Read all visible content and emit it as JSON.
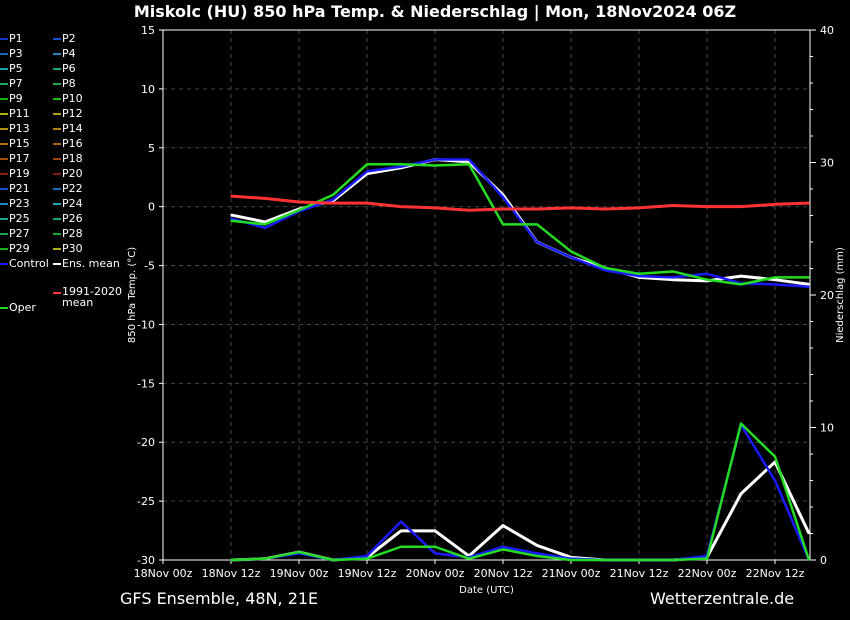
{
  "title": "Miskolc  (HU)  850 hPa Temp. & Niederschlag | Mon, 18Nov2024 06Z",
  "footer_left": "GFS Ensemble, 48N, 21E",
  "footer_right": "Wetterzentrale.de",
  "legend": [
    {
      "label": "P1",
      "color": "#1a33cc"
    },
    {
      "label": "P2",
      "color": "#1a4fcc"
    },
    {
      "label": "P3",
      "color": "#1a66bb"
    },
    {
      "label": "P4",
      "color": "#1a88bb"
    },
    {
      "label": "P5",
      "color": "#1aa6a6"
    },
    {
      "label": "P6",
      "color": "#1aa680"
    },
    {
      "label": "P7",
      "color": "#1aa666"
    },
    {
      "label": "P8",
      "color": "#1aa644"
    },
    {
      "label": "P9",
      "color": "#1ab01a"
    },
    {
      "label": "P10",
      "color": "#22bb11"
    },
    {
      "label": "P11",
      "color": "#b0b011"
    },
    {
      "label": "P12",
      "color": "#b0a011"
    },
    {
      "label": "P13",
      "color": "#b09011"
    },
    {
      "label": "P14",
      "color": "#b08011"
    },
    {
      "label": "P15",
      "color": "#b07011"
    },
    {
      "label": "P16",
      "color": "#b06011"
    },
    {
      "label": "P17",
      "color": "#a05011"
    },
    {
      "label": "P18",
      "color": "#a04011"
    },
    {
      "label": "P19",
      "color": "#8a2011"
    },
    {
      "label": "P20",
      "color": "#8a1a11"
    },
    {
      "label": "P21",
      "color": "#1a4fcc"
    },
    {
      "label": "P22",
      "color": "#1a6ebb"
    },
    {
      "label": "P23",
      "color": "#1a88bb"
    },
    {
      "label": "P24",
      "color": "#1aa6b0"
    },
    {
      "label": "P25",
      "color": "#1aa690"
    },
    {
      "label": "P26",
      "color": "#1aa670"
    },
    {
      "label": "P27",
      "color": "#1aa650"
    },
    {
      "label": "P28",
      "color": "#1aa630"
    },
    {
      "label": "P29",
      "color": "#1ab01a"
    },
    {
      "label": "P30",
      "color": "#b0b011"
    },
    {
      "label": "Control",
      "color": "#1a1aff"
    },
    {
      "label": "Ens. mean",
      "color": "#ffffff"
    },
    {
      "label": "1991-2020 mean",
      "color": "#ff3333"
    },
    {
      "label": "Oper",
      "color": "#22dd22"
    }
  ],
  "chart_data": {
    "type": "line",
    "x": [
      "18Nov 12z",
      "18Nov 18z",
      "19Nov 00z",
      "19Nov 06z",
      "19Nov 12z",
      "19Nov 18z",
      "20Nov 00z",
      "20Nov 06z",
      "20Nov 12z",
      "20Nov 18z",
      "21Nov 00z",
      "21Nov 06z",
      "21Nov 12z",
      "21Nov 18z",
      "22Nov 00z",
      "22Nov 06z",
      "22Nov 12z",
      "22Nov 18z"
    ],
    "xticks": [
      "18Nov 00z",
      "18Nov 12z",
      "19Nov 00z",
      "19Nov 12z",
      "20Nov 00z",
      "20Nov 12z",
      "21Nov 00z",
      "21Nov 12z",
      "22Nov 00z",
      "22Nov 12z"
    ],
    "xlabel": "Date (UTC)",
    "ylabel": "850 hPa Temp. (°C)",
    "y2label": "Niederschlag (mm)",
    "ylim": [
      -30,
      15
    ],
    "y2lim": [
      0,
      40
    ],
    "yticks": [
      15,
      10,
      5,
      0,
      -5,
      -10,
      -15,
      -20,
      -25,
      -30
    ],
    "y2ticks": [
      40,
      30,
      20,
      10,
      0
    ],
    "grid": true,
    "series": [
      {
        "name": "Ens. mean temp",
        "axis": "left",
        "color": "#ffffff",
        "width": 3,
        "values": [
          -0.7,
          -1.3,
          -0.2,
          0.5,
          2.8,
          3.3,
          4.0,
          3.8,
          1.0,
          -3.0,
          -4.3,
          -5.2,
          -6.0,
          -6.2,
          -6.3,
          -5.9,
          -6.2,
          -6.6
        ]
      },
      {
        "name": "Control temp",
        "axis": "left",
        "color": "#1a1aff",
        "width": 2.5,
        "values": [
          -1.0,
          -1.8,
          -0.4,
          0.6,
          3.0,
          3.4,
          4.0,
          4.0,
          0.8,
          -3.0,
          -4.3,
          -5.4,
          -5.9,
          -6.0,
          -5.7,
          -6.5,
          -6.6,
          -6.8
        ]
      },
      {
        "name": "Oper temp",
        "axis": "left",
        "color": "#22dd22",
        "width": 2.5,
        "values": [
          -1.2,
          -1.5,
          -0.3,
          1.0,
          3.6,
          3.6,
          3.5,
          3.6,
          -1.5,
          -1.5,
          -3.8,
          -5.2,
          -5.7,
          -5.5,
          -6.2,
          -6.6,
          -6.0,
          -6.0
        ]
      },
      {
        "name": "1991-2020 mean temp",
        "axis": "left",
        "color": "#ff3333",
        "width": 3,
        "values": [
          0.9,
          0.7,
          0.4,
          0.3,
          0.3,
          0.0,
          -0.1,
          -0.3,
          -0.2,
          -0.2,
          -0.1,
          -0.2,
          -0.1,
          0.1,
          0.0,
          0.0,
          0.2,
          0.3
        ]
      },
      {
        "name": "Ens. mean precip",
        "axis": "right",
        "color": "#ffffff",
        "width": 3,
        "values": [
          0,
          0.1,
          0.6,
          0,
          0.2,
          2.2,
          2.2,
          0.3,
          2.6,
          1.1,
          0.2,
          0,
          0,
          0,
          0.2,
          5.0,
          7.4,
          2.0
        ]
      },
      {
        "name": "Control precip",
        "axis": "right",
        "color": "#1a1aff",
        "width": 2.5,
        "values": [
          0,
          0.1,
          0.5,
          0,
          0.3,
          2.9,
          0.5,
          0.2,
          1.0,
          0.5,
          0.1,
          0,
          0,
          0,
          0.3,
          10.2,
          6.0,
          0
        ]
      },
      {
        "name": "Oper precip",
        "axis": "right",
        "color": "#22dd22",
        "width": 2.5,
        "values": [
          0,
          0.1,
          0.6,
          0,
          0.1,
          1.0,
          1.0,
          0.1,
          0.8,
          0.3,
          0,
          0,
          0,
          0,
          0.1,
          10.3,
          7.8,
          0
        ]
      }
    ]
  }
}
